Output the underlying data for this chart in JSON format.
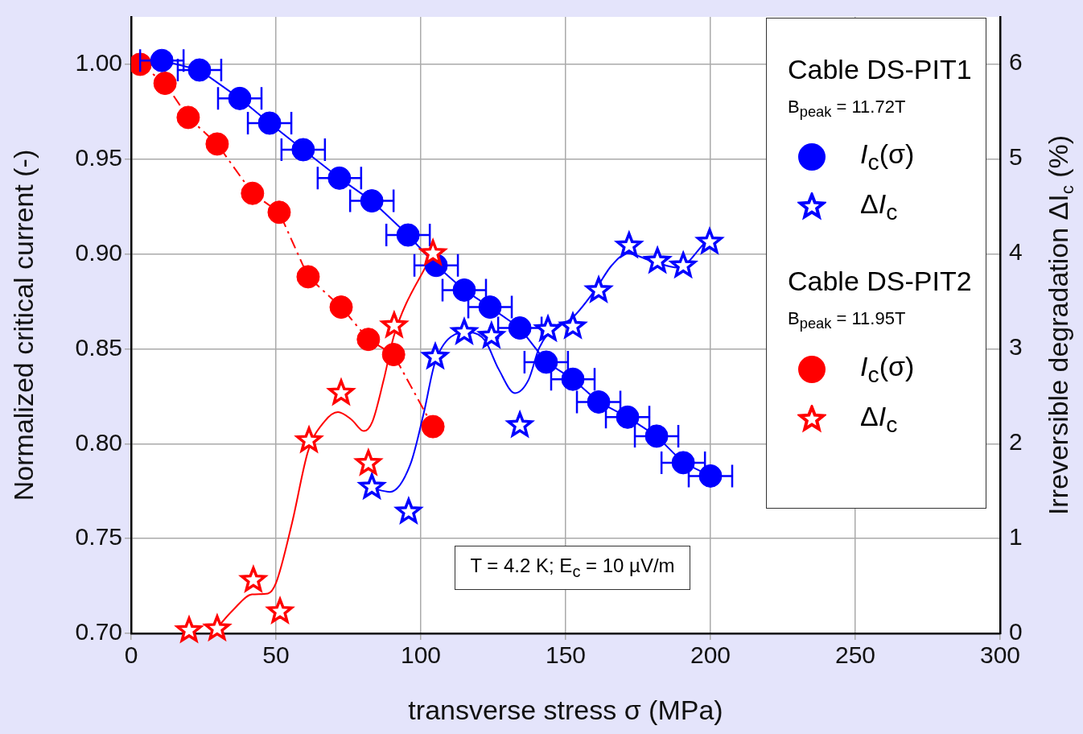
{
  "chart_data": {
    "type": "line",
    "xlabel": "transverse stress σ (MPa)",
    "ylabel": "Normalized critical current (-)",
    "y2label": "Irreversible degradation ΔI$_{c}$ (%)",
    "xlim": [
      0,
      300
    ],
    "xticks": [
      0,
      50,
      100,
      150,
      200,
      250,
      300
    ],
    "ylim": [
      0.7,
      1.025
    ],
    "yticks": [
      {
        "value": 0.7,
        "label": "0.70"
      },
      0.75,
      {
        "value": 0.8,
        "label": "0.80"
      },
      0.85,
      {
        "value": 0.9,
        "label": "0.90"
      },
      0.95,
      {
        "value": 1.0,
        "label": "1.00"
      }
    ],
    "y2lim": [
      0,
      6.49
    ],
    "y2ticks": [
      0,
      1,
      2,
      3,
      4,
      5,
      6
    ],
    "grid": true,
    "legend": "top right",
    "annotations": [
      "Cable DS-PIT1",
      "B$_{peak}$ = 11.72T",
      "Cable DS-PIT2",
      "B$_{peak}$ = 11.95T",
      "T = 4.2 K; E$_{c}$ = 10 µV/m"
    ],
    "series": [
      {
        "name": "I$_{c}$(σ)",
        "type": "line",
        "color": "#0000ff",
        "marker": "circle",
        "line_style": "solid",
        "x": [
          10.6,
          23.6,
          37.5,
          47.8,
          59.4,
          71.9,
          83.1,
          95.6,
          105.3,
          115,
          123.9,
          134.2,
          143.3,
          152.5,
          161.4,
          171.4,
          181.4,
          190.6,
          200
        ],
        "values": [
          1.002,
          0.997,
          0.982,
          0.969,
          0.955,
          0.94,
          0.928,
          0.91,
          0.894,
          0.881,
          0.872,
          0.861,
          0.843,
          0.834,
          0.822,
          0.814,
          0.804,
          0.79,
          0.783
        ],
        "xerrors": [
          7.5,
          7.5,
          7.5,
          7.5,
          7.5,
          7.5,
          7.5,
          7.5,
          7.5,
          7.5,
          7.5,
          7.5,
          7.5,
          7.5,
          7.5,
          7.5,
          7.5,
          7.5,
          7.5
        ]
      },
      {
        "name": "ΔI$_{c}$",
        "type": "scatter",
        "axis": "y2",
        "color": "#0000ff",
        "marker": "star",
        "x": [
          83.1,
          95.8,
          105,
          115,
          124.4,
          134.2,
          143.9,
          152.5,
          161.4,
          171.9,
          181.7,
          190.6,
          199.7
        ],
        "values": [
          1.54,
          1.28,
          2.91,
          3.17,
          3.13,
          2.19,
          3.2,
          3.23,
          3.61,
          4.08,
          3.92,
          3.87,
          4.12
        ]
      },
      {
        "name": "I$_{c}$(σ)",
        "type": "line",
        "color": "#ff0000",
        "marker": "circle",
        "line_style": "dashed",
        "x": [
          3.1,
          11.7,
          19.7,
          29.7,
          41.9,
          51.1,
          61.1,
          72.5,
          81.9,
          90.6,
          104.2
        ],
        "values": [
          1.0,
          0.99,
          0.972,
          0.958,
          0.932,
          0.922,
          0.888,
          0.872,
          0.855,
          0.847,
          0.809
        ]
      },
      {
        "name": "ΔI$_{c}$",
        "type": "scatter",
        "axis": "y2",
        "color": "#ff0000",
        "marker": "star",
        "x": [
          20,
          29.7,
          42.2,
          51.4,
          61.4,
          72.5,
          81.9,
          90.8,
          104.2
        ],
        "values": [
          0.03,
          0.05,
          0.56,
          0.23,
          2.03,
          2.53,
          1.79,
          3.24,
          4.0
        ]
      },
      {
        "type": "line",
        "axis": "y2",
        "color": "#0000ff",
        "marker": "none",
        "line_style": "solid",
        "x": [
          83.1,
          89.4,
          96.4,
          101.1,
          104.7,
          110.3,
          116.7,
          122.2,
          126.9,
          132.5,
          137.2,
          140.8,
          146.4,
          151.9,
          160.3,
          165.8,
          171.4,
          179.7,
          188.9,
          198.3
        ],
        "values": [
          1.53,
          1.49,
          1.78,
          2.33,
          2.83,
          3.12,
          3.17,
          3.08,
          2.78,
          2.53,
          2.67,
          3.0,
          3.23,
          3.31,
          3.62,
          3.87,
          4.0,
          3.92,
          3.85,
          4.12
        ]
      },
      {
        "type": "line",
        "axis": "y2",
        "color": "#ff0000",
        "marker": "none",
        "line_style": "solid",
        "x": [
          29.7,
          35.3,
          41.7,
          47.2,
          50,
          55.6,
          61.1,
          66.7,
          71.4,
          76.1,
          80.3,
          83.3,
          87.2,
          90.8,
          103.3
        ],
        "values": [
          0.06,
          0.25,
          0.41,
          0.42,
          0.53,
          1.17,
          1.92,
          2.23,
          2.33,
          2.25,
          2.13,
          2.23,
          2.67,
          3.14,
          3.96
        ]
      }
    ]
  }
}
